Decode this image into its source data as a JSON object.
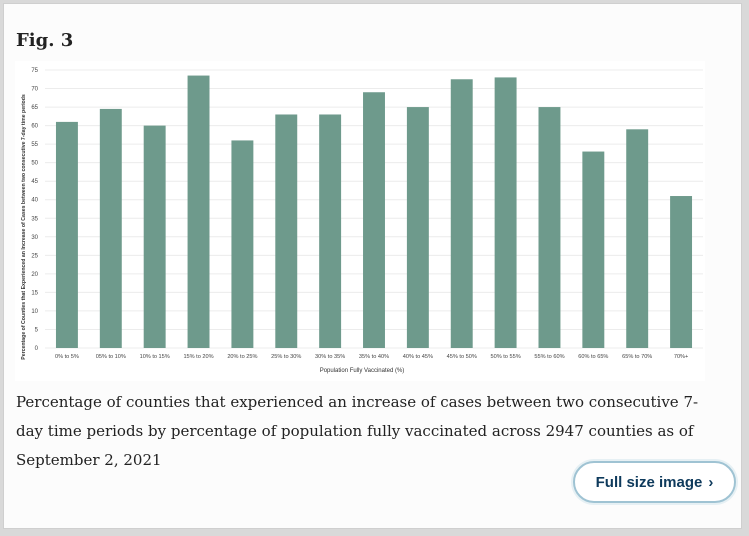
{
  "figure": {
    "label": "Fig. 3",
    "caption": "Percentage of counties that experienced an increase of cases between two consecutive 7-day time periods by percentage of population fully vaccinated across 2947 counties as of September 2, 2021",
    "button_label": "Full size image",
    "button_icon": "chevron-right-icon"
  },
  "chart_data": {
    "type": "bar",
    "categories": [
      "0% to 5%",
      "05% to 10%",
      "10% to 15%",
      "15% to 20%",
      "20% to 25%",
      "25% to 30%",
      "30% to 35%",
      "35% to 40%",
      "40% to 45%",
      "45% to 50%",
      "50% to 55%",
      "55% to 60%",
      "60% to 65%",
      "65% to 70%",
      "70%+"
    ],
    "values": [
      61,
      64.5,
      60,
      73.5,
      56,
      63,
      63,
      69,
      65,
      72.5,
      73,
      65,
      53,
      59,
      41
    ],
    "xlabel": "Population Fully Vaccinated (%)",
    "ylabel": "Percentage of Counties that Experienced an Increase of Cases between two consecutive 7-day time periods",
    "ylim": [
      0,
      75
    ],
    "yticks": [
      0,
      5,
      10,
      15,
      20,
      25,
      30,
      35,
      40,
      45,
      50,
      55,
      60,
      65,
      70,
      75
    ],
    "grid": true,
    "bar_color": "#6e9a8c"
  }
}
